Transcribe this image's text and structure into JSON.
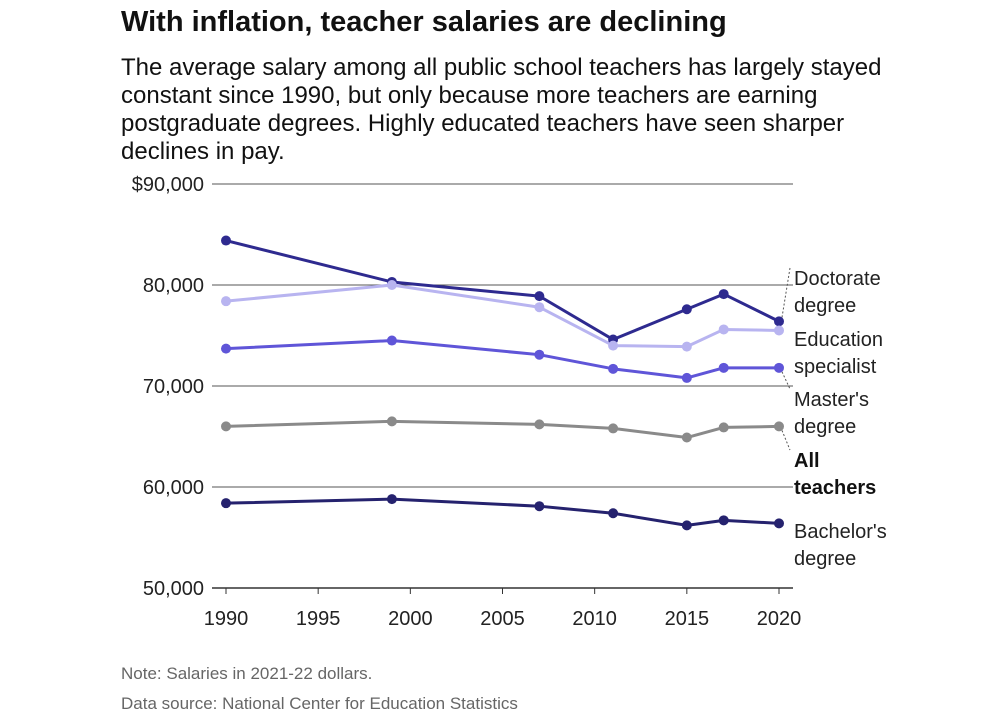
{
  "header": {
    "title": "With inflation, teacher salaries are declining",
    "subtitle": "The average salary among all public school teachers has largely stayed constant since 1990, but only because more teachers are earning postgraduate degrees. Highly educated teachers have seen sharper declines in pay."
  },
  "footer": {
    "note": "Note: Salaries in 2021-22 dollars.",
    "source": "Data source: National Center for Education Statistics"
  },
  "chart_data": {
    "type": "line",
    "title": "With inflation, teacher salaries are declining",
    "xlabel": "",
    "ylabel": "",
    "xlim": [
      1990,
      2020
    ],
    "ylim": [
      50000,
      90000
    ],
    "grid": true,
    "x_ticks": [
      1990,
      1995,
      2000,
      2005,
      2010,
      2015,
      2020
    ],
    "x_tick_labels": [
      "1990",
      "1995",
      "2000",
      "2005",
      "2010",
      "2015",
      "2020"
    ],
    "y_ticks": [
      50000,
      60000,
      70000,
      80000,
      90000
    ],
    "y_tick_labels": [
      "50,000",
      "60,000",
      "70,000",
      "80,000",
      "$90,000"
    ],
    "x": [
      1990,
      1999,
      2007,
      2011,
      2015,
      2017,
      2020
    ],
    "series": [
      {
        "name": "Doctorate degree",
        "label_lines": [
          "Doctorate",
          "degree"
        ],
        "color": "#2e2a8f",
        "bold": false,
        "values": [
          84400,
          80300,
          78900,
          74600,
          77600,
          79100,
          76400
        ]
      },
      {
        "name": "Education specialist",
        "label_lines": [
          "Education",
          "specialist"
        ],
        "color": "#b8b4f0",
        "bold": false,
        "values": [
          78400,
          80000,
          77800,
          74000,
          73900,
          75600,
          75500
        ]
      },
      {
        "name": "Master's degree",
        "label_lines": [
          "Master's",
          "degree"
        ],
        "color": "#5f55d8",
        "bold": false,
        "values": [
          73700,
          74500,
          73100,
          71700,
          70800,
          71800,
          71800
        ]
      },
      {
        "name": "All teachers",
        "label_lines": [
          "All",
          "teachers"
        ],
        "color": "#8a8a8a",
        "bold": true,
        "values": [
          66000,
          66500,
          66200,
          65800,
          64900,
          65900,
          66000
        ]
      },
      {
        "name": "Bachelor's degree",
        "label_lines": [
          "Bachelor's",
          "degree"
        ],
        "color": "#25226e",
        "bold": false,
        "values": [
          58400,
          58800,
          58100,
          57400,
          56200,
          56700,
          56400
        ]
      }
    ]
  }
}
